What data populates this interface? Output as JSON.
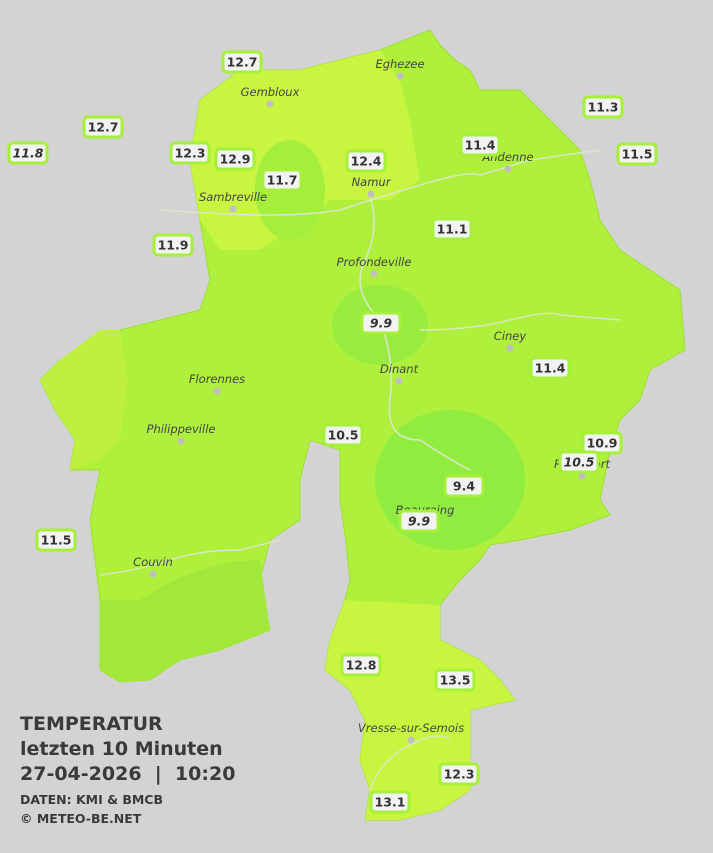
{
  "map": {
    "legend": {
      "title": "TEMPERATUR",
      "subtitle": "letzten 10 Minuten",
      "timestamp": "27-04-2026  |  10:20",
      "source": "DATEN: KMI & BMCB",
      "copyright": "© METEO-BE.NET"
    },
    "cities": [
      "Eghezee",
      "Gembloux",
      "Andenne",
      "Namur",
      "Sambreville",
      "Profondeville",
      "Ciney",
      "Dinant",
      "Florennes",
      "Philippeville",
      "Beauraing",
      "Rochefort",
      "Couvin",
      "Vresse-sur-Semois"
    ],
    "stations": [
      {
        "value": 12.7
      },
      {
        "value": 12.7
      },
      {
        "value": 11.8,
        "italic": true
      },
      {
        "value": 12.3
      },
      {
        "value": 12.9
      },
      {
        "value": 11.7
      },
      {
        "value": 12.4
      },
      {
        "value": 11.4
      },
      {
        "value": 11.3
      },
      {
        "value": 11.5
      },
      {
        "value": 11.9
      },
      {
        "value": 11.1
      },
      {
        "value": 9.9,
        "italic": true
      },
      {
        "value": 11.4
      },
      {
        "value": 10.5
      },
      {
        "value": 10.9
      },
      {
        "value": 10.5,
        "italic": true
      },
      {
        "value": 9.4
      },
      {
        "value": 9.9,
        "italic": true
      },
      {
        "value": 11.5
      },
      {
        "value": 12.8
      },
      {
        "value": 13.5
      },
      {
        "value": 12.3
      },
      {
        "value": 13.1
      }
    ]
  }
}
